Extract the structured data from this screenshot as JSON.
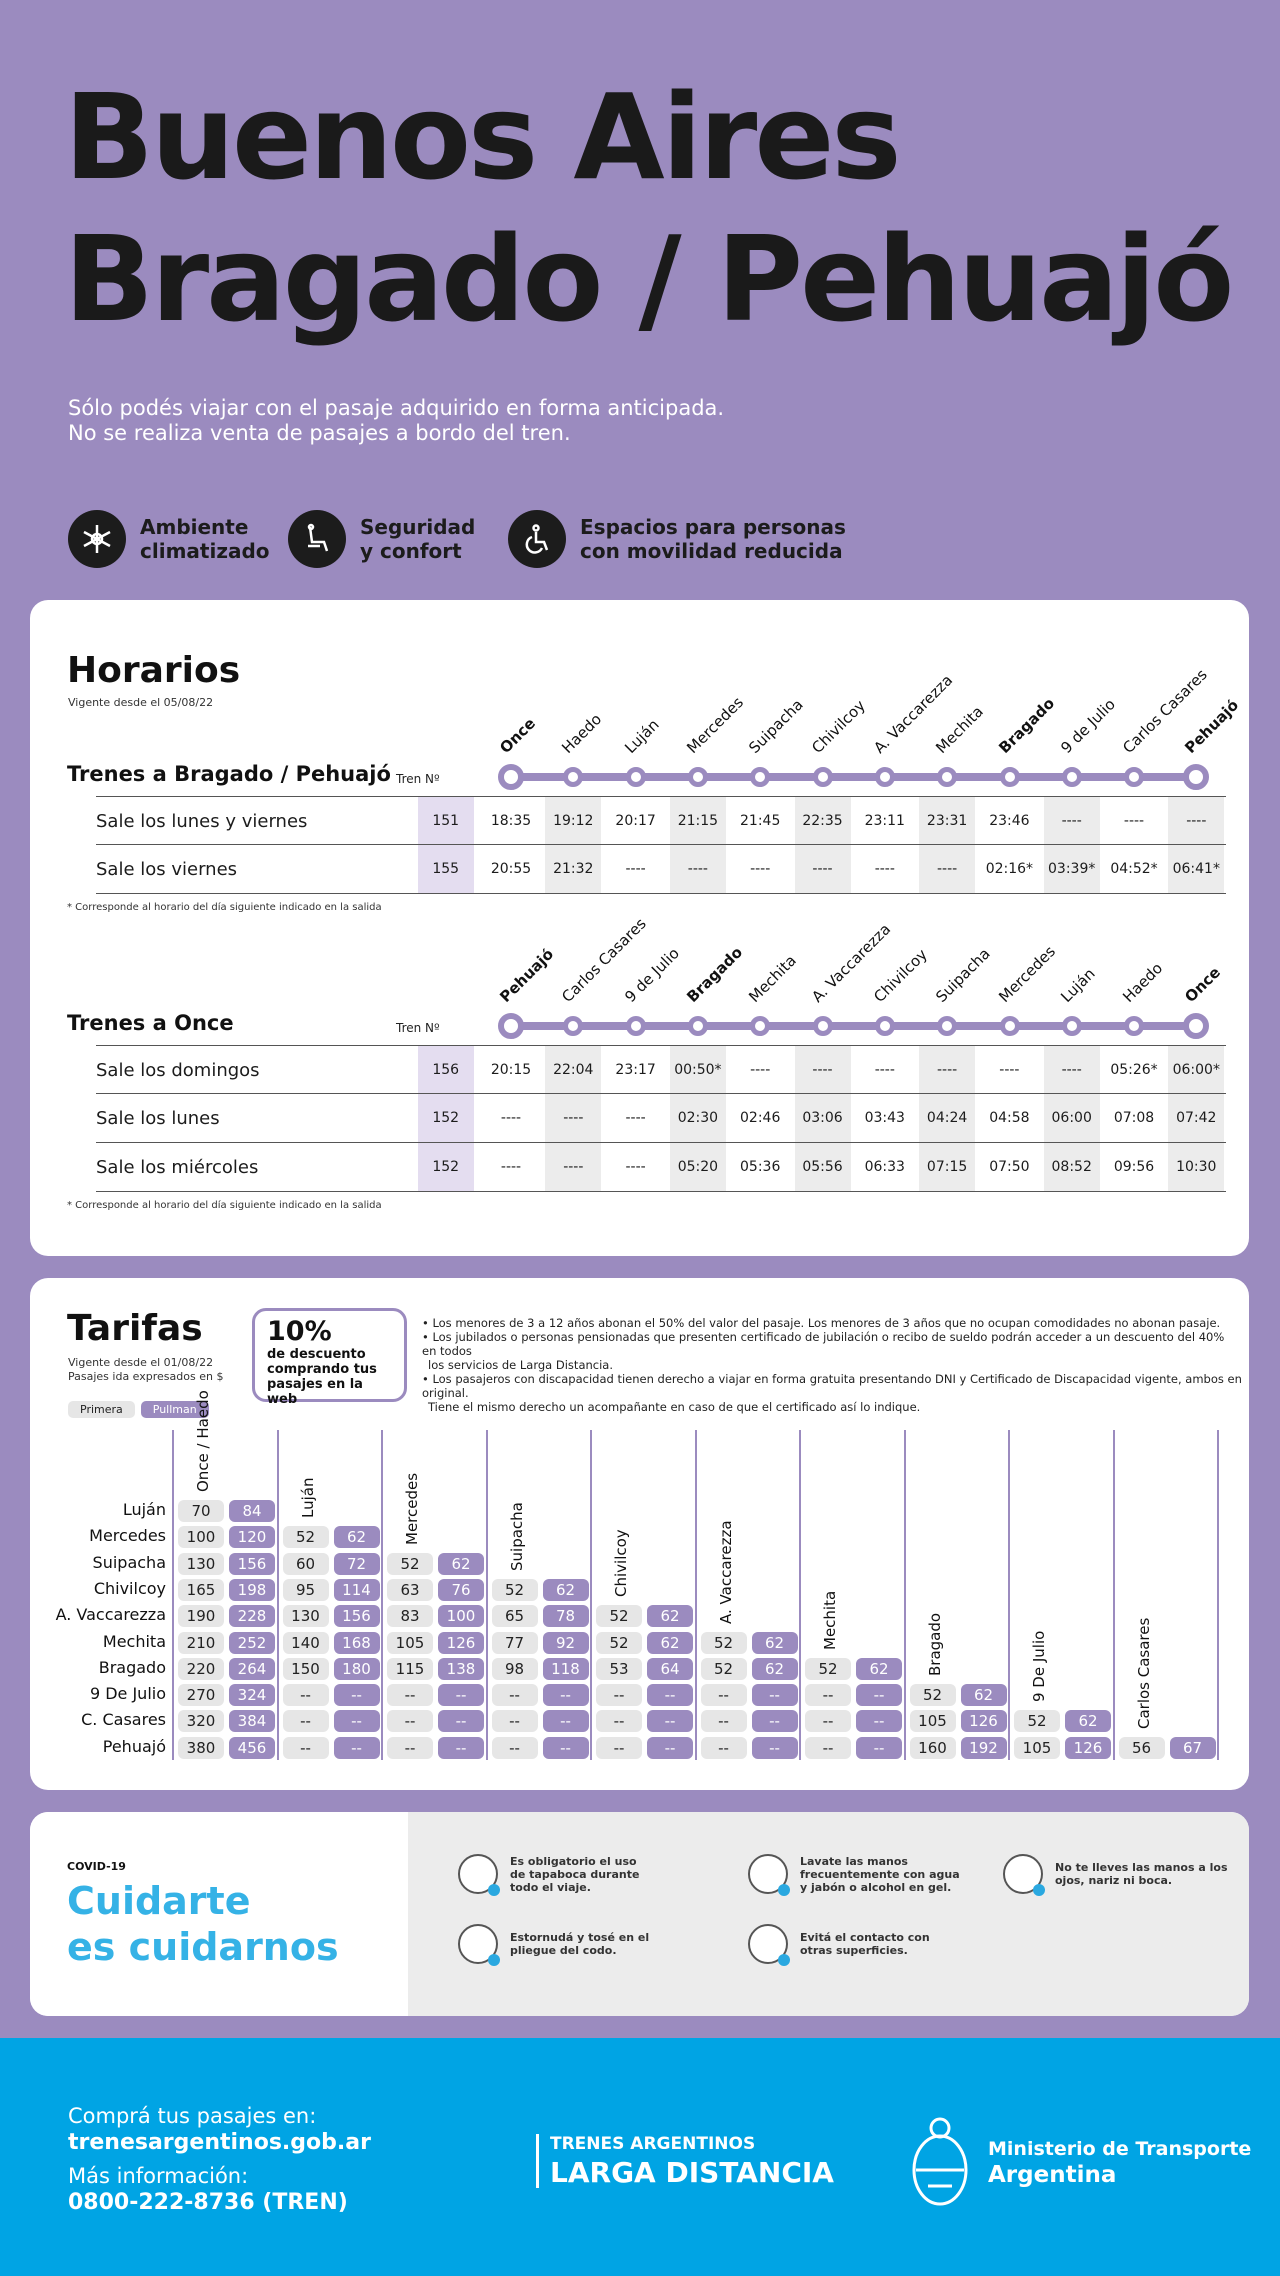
{
  "hero": {
    "title_line1": "Buenos Aires",
    "title_line2": "Bragado / Pehuajó",
    "notice_line1": "Sólo podés viajar con el pasaje adquirido en forma anticipada.",
    "notice_line2": "No se realiza venta de pasajes a bordo del tren."
  },
  "features": [
    {
      "icon": "snowflake-icon",
      "line1": "Ambiente",
      "line2": "climatizado"
    },
    {
      "icon": "seat-icon",
      "line1": "Seguridad",
      "line2": "y confort"
    },
    {
      "icon": "wheelchair-icon",
      "line1": "Espacios para personas",
      "line2": "con movilidad reducida"
    }
  ],
  "horarios": {
    "title": "Horarios",
    "vigente": "Vigente desde el 05/08/22",
    "tren_header": "Tren Nº",
    "footnote": "* Corresponde al horario del día siguiente indicado en la salida",
    "to_bragado": {
      "title": "Trenes a Bragado / Pehuajó",
      "stations": [
        "Once",
        "Haedo",
        "Luján",
        "Mercedes",
        "Suipacha",
        "Chivilcoy",
        "A. Vaccarezza",
        "Mechita",
        "Bragado",
        "9 de Julio",
        "Carlos Casares",
        "Pehuajó"
      ],
      "rows": [
        {
          "label": "Sale los lunes y viernes",
          "tren": "151",
          "times": [
            "18:35",
            "19:12",
            "20:17",
            "21:15",
            "21:45",
            "22:35",
            "23:11",
            "23:31",
            "23:46",
            "----",
            "----",
            "----"
          ]
        },
        {
          "label": "Sale los viernes",
          "tren": "155",
          "times": [
            "20:55",
            "21:32",
            "----",
            "----",
            "----",
            "----",
            "----",
            "----",
            "02:16*",
            "03:39*",
            "04:52*",
            "06:41*"
          ]
        }
      ]
    },
    "to_once": {
      "title": "Trenes a Once",
      "stations": [
        "Pehuajó",
        "Carlos Casares",
        "9 de Julio",
        "Bragado",
        "Mechita",
        "A. Vaccarezza",
        "Chivilcoy",
        "Suipacha",
        "Mercedes",
        "Luján",
        "Haedo",
        "Once"
      ],
      "rows": [
        {
          "label": "Sale los domingos",
          "tren": "156",
          "times": [
            "20:15",
            "22:04",
            "23:17",
            "00:50*",
            "----",
            "----",
            "----",
            "----",
            "----",
            "----",
            "05:26*",
            "06:00*"
          ]
        },
        {
          "label": "Sale los lunes",
          "tren": "152",
          "times": [
            "----",
            "----",
            "----",
            "02:30",
            "02:46",
            "03:06",
            "03:43",
            "04:24",
            "04:58",
            "06:00",
            "07:08",
            "07:42"
          ]
        },
        {
          "label": "Sale los miércoles",
          "tren": "152",
          "times": [
            "----",
            "----",
            "----",
            "05:20",
            "05:36",
            "05:56",
            "06:33",
            "07:15",
            "07:50",
            "08:52",
            "09:56",
            "10:30"
          ]
        }
      ]
    }
  },
  "tarifas": {
    "title": "Tarifas",
    "vigente": "Vigente desde el 01/08/22",
    "expresados": "Pasajes ida expresados en $",
    "primera": "Primera",
    "pullman": "Pullman",
    "promo_pct": "10%",
    "promo_l1": "de descuento",
    "promo_l2": "comprando tus",
    "promo_l3": "pasajes en la web",
    "bullets": [
      "• Los menores de 3 a 12 años abonan el 50% del valor del pasaje. Los menores de 3 años que no ocupan comodidades no abonan pasaje.",
      "• Los jubilados o personas pensionadas que presenten certificado de jubilación o recibo de sueldo podrán acceder a un descuento del 40% en todos",
      "  los servicios de Larga Distancia.",
      "• Los pasajeros con discapacidad tienen derecho a viajar en forma gratuita presentando DNI y Certificado de Discapacidad vigente, ambos en original.",
      "  Tiene el mismo derecho un acompañante en caso de que el certificado así lo indique."
    ],
    "origins": [
      "Once / Haedo",
      "Luján",
      "Mercedes",
      "Suipacha",
      "Chivilcoy",
      "A. Vaccarezza",
      "Mechita",
      "Bragado",
      "9 De Julio",
      "Carlos Casares"
    ],
    "dests": [
      "Luján",
      "Mercedes",
      "Suipacha",
      "Chivilcoy",
      "A. Vaccarezza",
      "Mechita",
      "Bragado",
      "9 De Julio",
      "C. Casares",
      "Pehuajó"
    ],
    "matrix": [
      [
        [
          "70",
          "84"
        ]
      ],
      [
        [
          "100",
          "120"
        ],
        [
          "52",
          "62"
        ]
      ],
      [
        [
          "130",
          "156"
        ],
        [
          "60",
          "72"
        ],
        [
          "52",
          "62"
        ]
      ],
      [
        [
          "165",
          "198"
        ],
        [
          "95",
          "114"
        ],
        [
          "63",
          "76"
        ],
        [
          "52",
          "62"
        ]
      ],
      [
        [
          "190",
          "228"
        ],
        [
          "130",
          "156"
        ],
        [
          "83",
          "100"
        ],
        [
          "65",
          "78"
        ],
        [
          "52",
          "62"
        ]
      ],
      [
        [
          "210",
          "252"
        ],
        [
          "140",
          "168"
        ],
        [
          "105",
          "126"
        ],
        [
          "77",
          "92"
        ],
        [
          "52",
          "62"
        ],
        [
          "52",
          "62"
        ]
      ],
      [
        [
          "220",
          "264"
        ],
        [
          "150",
          "180"
        ],
        [
          "115",
          "138"
        ],
        [
          "98",
          "118"
        ],
        [
          "53",
          "64"
        ],
        [
          "52",
          "62"
        ],
        [
          "52",
          "62"
        ]
      ],
      [
        [
          "270",
          "324"
        ],
        [
          "--",
          "--"
        ],
        [
          "--",
          "--"
        ],
        [
          "--",
          "--"
        ],
        [
          "--",
          "--"
        ],
        [
          "--",
          "--"
        ],
        [
          "--",
          "--"
        ],
        [
          "52",
          "62"
        ]
      ],
      [
        [
          "320",
          "384"
        ],
        [
          "--",
          "--"
        ],
        [
          "--",
          "--"
        ],
        [
          "--",
          "--"
        ],
        [
          "--",
          "--"
        ],
        [
          "--",
          "--"
        ],
        [
          "--",
          "--"
        ],
        [
          "105",
          "126"
        ],
        [
          "52",
          "62"
        ]
      ],
      [
        [
          "380",
          "456"
        ],
        [
          "--",
          "--"
        ],
        [
          "--",
          "--"
        ],
        [
          "--",
          "--"
        ],
        [
          "--",
          "--"
        ],
        [
          "--",
          "--"
        ],
        [
          "--",
          "--"
        ],
        [
          "160",
          "192"
        ],
        [
          "105",
          "126"
        ],
        [
          "56",
          "67"
        ]
      ]
    ]
  },
  "covid": {
    "tag": "COVID-19",
    "title1": "Cuidarte",
    "title2": "es cuidarnos",
    "items": [
      {
        "icon": "face-mask-icon",
        "l1": "Es obligatorio el uso",
        "l2": "de tapaboca durante",
        "l3": "todo el viaje."
      },
      {
        "icon": "hand-wash-icon",
        "l1": "Lavate las manos",
        "l2": "frecuentemente con agua",
        "l3": "y jabón o alcohol en gel."
      },
      {
        "icon": "no-touch-face-icon",
        "l1": "No te lleves las manos a los",
        "l2": "ojos, nariz ni boca.",
        "l3": ""
      },
      {
        "icon": "sneeze-elbow-icon",
        "l1": "Estornudá y tosé en el",
        "l2": "pliegue del codo.",
        "l3": ""
      },
      {
        "icon": "no-contact-icon",
        "l1": "Evitá el contacto con",
        "l2": "otras superficies.",
        "l3": ""
      }
    ]
  },
  "footer": {
    "buy_label": "Comprá tus pasajes en:",
    "buy_url": "trenesargentinos.gob.ar",
    "info_label": "Más información:",
    "phone": "0800-222-8736 (TREN)",
    "brand1": "TRENES ARGENTINOS",
    "brand2": "LARGA DISTANCIA",
    "ministry1": "Ministerio de Transporte",
    "ministry2": "Argentina"
  }
}
